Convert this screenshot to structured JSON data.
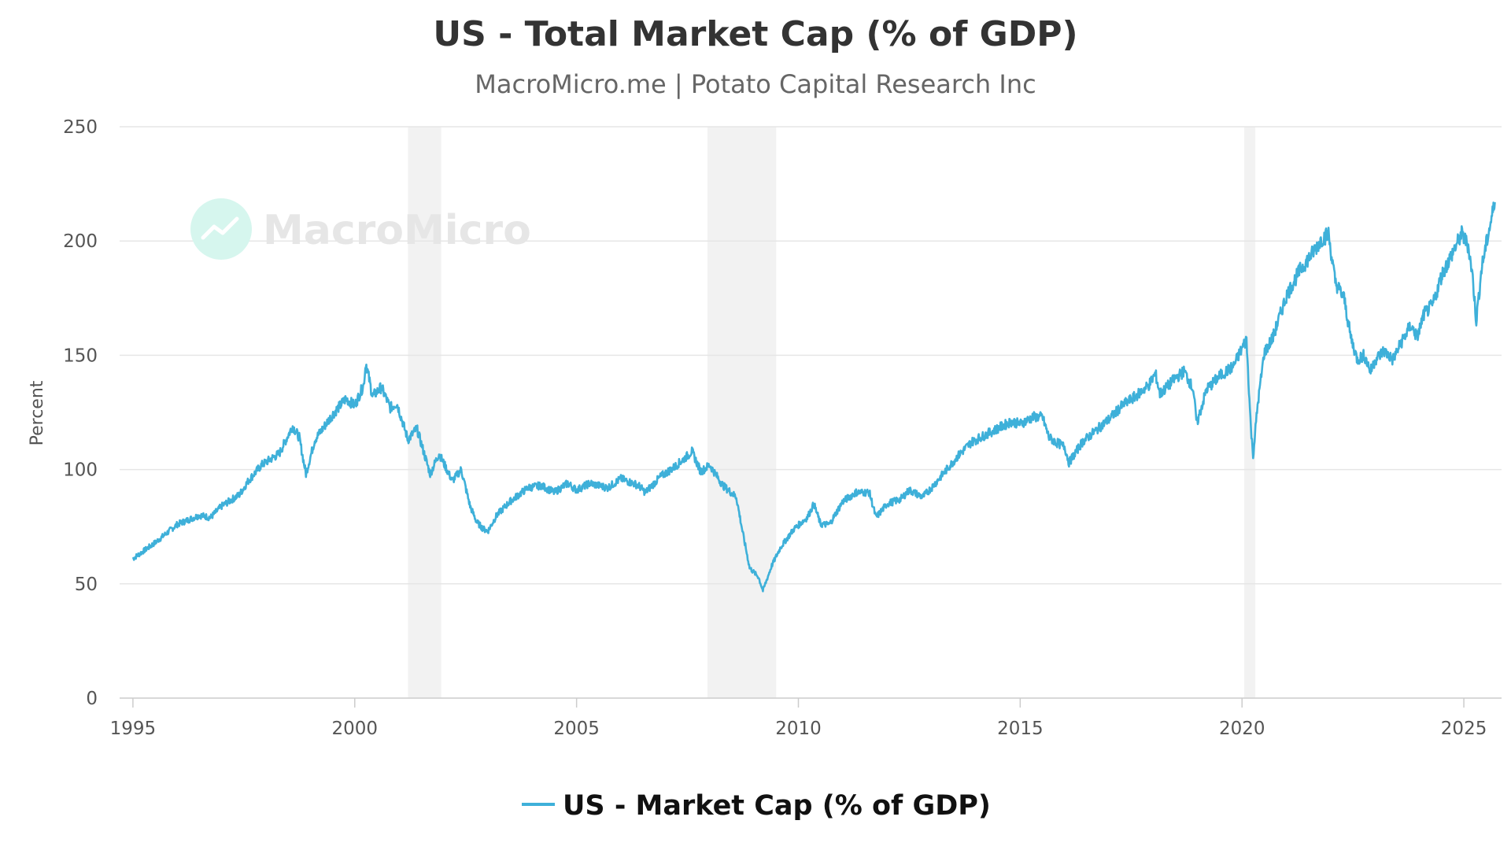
{
  "chart_data": {
    "type": "line",
    "title": "US - Total Market Cap (% of GDP)",
    "subtitle": "MacroMicro.me | Potato Capital Research Inc",
    "xlabel": "",
    "ylabel": "Percent",
    "xlim": [
      1994.7,
      2025.85
    ],
    "ylim": [
      0,
      250
    ],
    "x_ticks": [
      1995,
      2000,
      2005,
      2010,
      2015,
      2020,
      2025
    ],
    "x_tick_labels": [
      "1995",
      "2000",
      "2005",
      "2010",
      "2015",
      "2020",
      "2025"
    ],
    "y_ticks": [
      0,
      50,
      100,
      150,
      200,
      250
    ],
    "y_tick_labels": [
      "0",
      "50",
      "100",
      "150",
      "200",
      "250"
    ],
    "grid": true,
    "legend_position": "bottom-center",
    "watermark": "MacroMicro",
    "recessions": [
      {
        "start": 2001.2,
        "end": 2001.95
      },
      {
        "start": 2007.95,
        "end": 2009.5
      },
      {
        "start": 2020.05,
        "end": 2020.3
      }
    ],
    "series": [
      {
        "name": "US - Market Cap (% of GDP)",
        "color": "#3eb0d9",
        "x": [
          1995.0,
          1995.5,
          1996.0,
          1996.5,
          1996.75,
          1997.0,
          1997.4,
          1997.6,
          1997.9,
          1998.3,
          1998.6,
          1998.75,
          1998.9,
          1999.1,
          1999.5,
          1999.8,
          2000.0,
          2000.2,
          2000.25,
          2000.4,
          2000.6,
          2000.8,
          2000.95,
          2001.2,
          2001.4,
          2001.7,
          2001.9,
          2002.2,
          2002.4,
          2002.6,
          2002.75,
          2002.9,
          2003.0,
          2003.2,
          2003.5,
          2003.9,
          2004.2,
          2004.5,
          2004.8,
          2005.0,
          2005.3,
          2005.7,
          2006.0,
          2006.4,
          2006.55,
          2006.9,
          2007.2,
          2007.5,
          2007.6,
          2007.8,
          2008.0,
          2008.3,
          2008.6,
          2008.75,
          2008.9,
          2009.1,
          2009.2,
          2009.4,
          2009.6,
          2009.9,
          2010.2,
          2010.35,
          2010.5,
          2010.7,
          2011.0,
          2011.3,
          2011.6,
          2011.75,
          2012.0,
          2012.3,
          2012.5,
          2012.8,
          2013.0,
          2013.3,
          2013.6,
          2013.9,
          2014.2,
          2014.5,
          2014.8,
          2015.0,
          2015.3,
          2015.5,
          2015.65,
          2015.8,
          2016.0,
          2016.1,
          2016.4,
          2016.7,
          2017.0,
          2017.3,
          2017.6,
          2017.9,
          2018.05,
          2018.15,
          2018.5,
          2018.7,
          2018.9,
          2018.98,
          2019.2,
          2019.5,
          2019.8,
          2020.0,
          2020.1,
          2020.2,
          2020.25,
          2020.35,
          2020.5,
          2020.7,
          2020.9,
          2021.0,
          2021.3,
          2021.6,
          2021.8,
          2021.95,
          2022.1,
          2022.3,
          2022.45,
          2022.6,
          2022.75,
          2022.9,
          2023.0,
          2023.2,
          2023.4,
          2023.6,
          2023.8,
          2023.95,
          2024.1,
          2024.3,
          2024.5,
          2024.7,
          2024.95,
          2025.1,
          2025.2,
          2025.28,
          2025.4,
          2025.55,
          2025.7
        ],
        "values": [
          61,
          68,
          76,
          80,
          79,
          84,
          89,
          95,
          102,
          107,
          119,
          114,
          98,
          113,
          124,
          131,
          128,
          137,
          147,
          132,
          136,
          127,
          129,
          113,
          118,
          98,
          107,
          95,
          100,
          84,
          77,
          74,
          73,
          80,
          86,
          92,
          93,
          90,
          94,
          91,
          94,
          92,
          96,
          93,
          90,
          97,
          101,
          106,
          108,
          99,
          102,
          93,
          88,
          72,
          57,
          53,
          47,
          58,
          66,
          74,
          79,
          85,
          76,
          76,
          86,
          90,
          90,
          79,
          85,
          87,
          91,
          88,
          92,
          99,
          106,
          112,
          115,
          118,
          121,
          120,
          123,
          123,
          114,
          112,
          110,
          103,
          112,
          117,
          122,
          128,
          132,
          137,
          142,
          133,
          140,
          143,
          135,
          120,
          135,
          141,
          145,
          153,
          157,
          118,
          106,
          128,
          151,
          158,
          170,
          176,
          187,
          195,
          201,
          203,
          182,
          175,
          158,
          148,
          150,
          143,
          148,
          152,
          148,
          156,
          163,
          158,
          168,
          172,
          185,
          193,
          203,
          198,
          184,
          165,
          188,
          203,
          217
        ]
      }
    ]
  }
}
